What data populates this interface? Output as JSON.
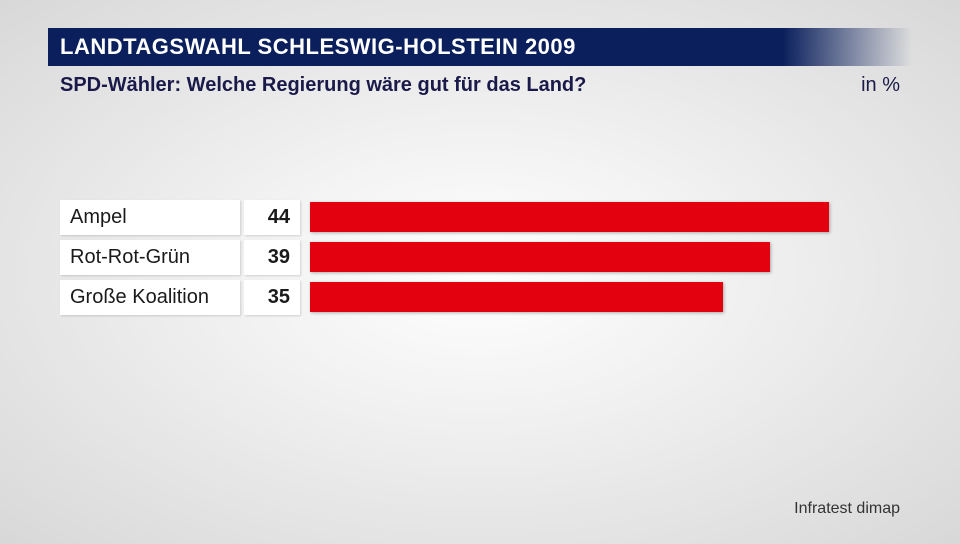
{
  "header": {
    "title": "LANDTAGSWAHL SCHLESWIG-HOLSTEIN 2009",
    "subtitle": "SPD-Wähler: Welche Regierung wäre gut für das Land?",
    "unit": "in %",
    "title_bg_color": "#0a1f5c",
    "title_text_color": "#ffffff",
    "subtitle_color": "#1a1a4a"
  },
  "chart": {
    "type": "bar",
    "bar_color": "#e3000f",
    "max_value": 50,
    "label_bg": "#ffffff",
    "value_bg": "#ffffff",
    "label_fontsize": 20,
    "value_fontsize": 20,
    "rows": [
      {
        "label": "Ampel",
        "value": 44
      },
      {
        "label": "Rot-Rot-Grün",
        "value": 39
      },
      {
        "label": "Große Koalition",
        "value": 35
      }
    ]
  },
  "source": "Infratest dimap",
  "background": {
    "gradient_center": "#ffffff",
    "gradient_edge": "#d8d8d8"
  }
}
